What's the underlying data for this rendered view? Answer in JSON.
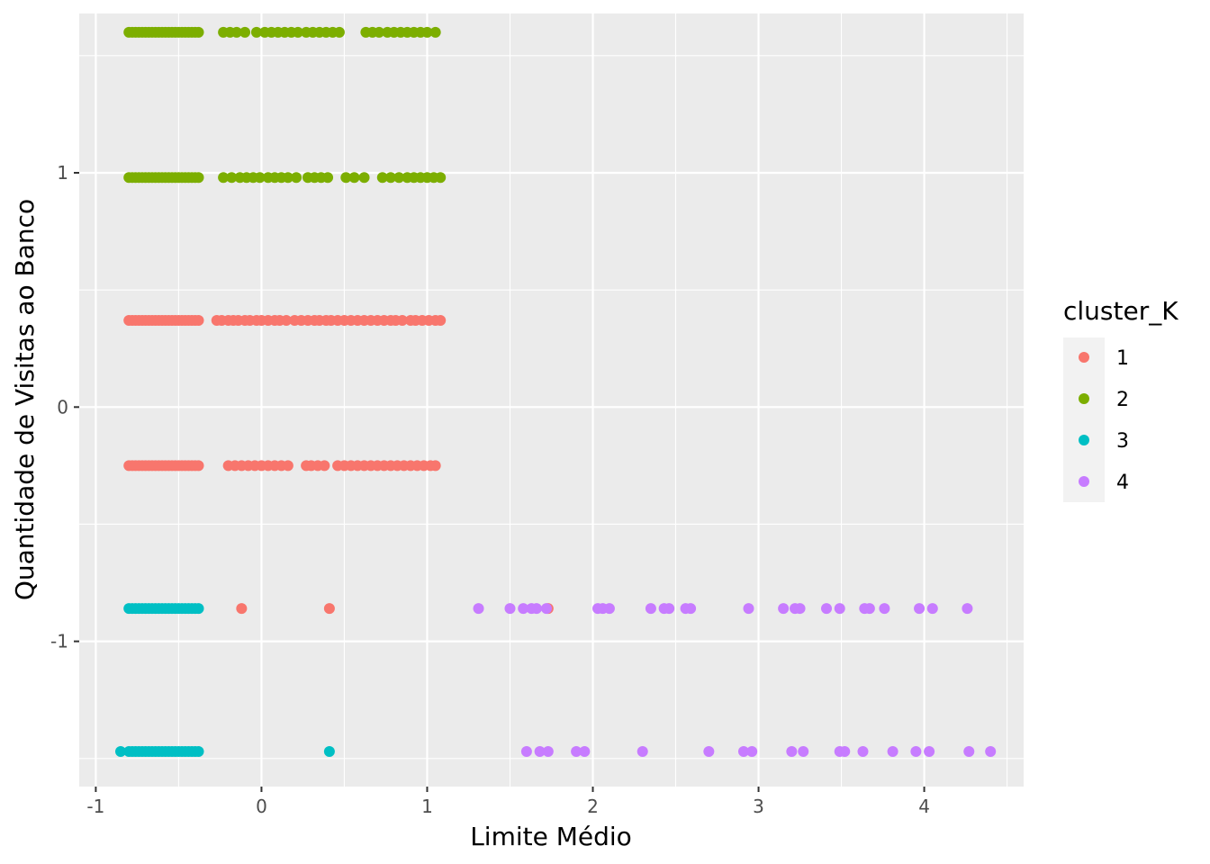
{
  "chart_data": {
    "type": "scatter",
    "xlabel": "Limite Médio",
    "ylabel": "Quantidade de Visitas ao Banco",
    "xlim": [
      -1.1,
      4.6
    ],
    "ylim": [
      -1.62,
      1.68
    ],
    "x_ticks": [
      -1,
      0,
      1,
      2,
      3,
      4
    ],
    "x_tick_labels": [
      "-1",
      "0",
      "1",
      "2",
      "3",
      "4"
    ],
    "y_ticks": [
      -1,
      0,
      1
    ],
    "y_tick_labels": [
      "-1",
      "0",
      "1"
    ],
    "grid": true,
    "legend": {
      "title": "cluster_K",
      "position": "right"
    },
    "series": [
      {
        "name": "1",
        "color": "#F8766D",
        "groups": [
          {
            "y": 0.37,
            "x": [
              -0.8,
              -0.78,
              -0.76,
              -0.74,
              -0.72,
              -0.7,
              -0.68,
              -0.66,
              -0.64,
              -0.62,
              -0.6,
              -0.58,
              -0.56,
              -0.54,
              -0.52,
              -0.5,
              -0.48,
              -0.46,
              -0.44,
              -0.42,
              -0.4,
              -0.38,
              -0.27,
              -0.24,
              -0.2,
              -0.17,
              -0.14,
              -0.1,
              -0.07,
              -0.03,
              0.0,
              0.04,
              0.08,
              0.11,
              0.15,
              0.2,
              0.24,
              0.28,
              0.32,
              0.35,
              0.39,
              0.42,
              0.46,
              0.5,
              0.54,
              0.58,
              0.62,
              0.66,
              0.7,
              0.74,
              0.78,
              0.81,
              0.85,
              0.9,
              0.93,
              0.97,
              1.01,
              1.05,
              1.08
            ]
          },
          {
            "y": -0.25,
            "x": [
              -0.8,
              -0.78,
              -0.76,
              -0.74,
              -0.72,
              -0.7,
              -0.68,
              -0.66,
              -0.64,
              -0.62,
              -0.6,
              -0.58,
              -0.56,
              -0.54,
              -0.52,
              -0.5,
              -0.48,
              -0.46,
              -0.44,
              -0.42,
              -0.4,
              -0.38,
              -0.2,
              -0.16,
              -0.12,
              -0.08,
              -0.04,
              0.0,
              0.04,
              0.08,
              0.12,
              0.16,
              0.27,
              0.3,
              0.34,
              0.38,
              0.46,
              0.5,
              0.54,
              0.58,
              0.62,
              0.66,
              0.7,
              0.74,
              0.78,
              0.82,
              0.86,
              0.9,
              0.94,
              0.98,
              1.02,
              1.05
            ]
          },
          {
            "y": -0.86,
            "x": [
              -0.12,
              0.41,
              1.73
            ]
          }
        ]
      },
      {
        "name": "2",
        "color": "#7CAE00",
        "groups": [
          {
            "y": 1.6,
            "x": [
              -0.8,
              -0.78,
              -0.76,
              -0.74,
              -0.72,
              -0.7,
              -0.68,
              -0.66,
              -0.64,
              -0.62,
              -0.6,
              -0.58,
              -0.56,
              -0.54,
              -0.52,
              -0.5,
              -0.48,
              -0.46,
              -0.44,
              -0.42,
              -0.4,
              -0.38,
              -0.23,
              -0.19,
              -0.15,
              -0.1,
              -0.03,
              0.02,
              0.06,
              0.1,
              0.14,
              0.18,
              0.22,
              0.27,
              0.31,
              0.35,
              0.39,
              0.43,
              0.47,
              0.63,
              0.67,
              0.71,
              0.76,
              0.8,
              0.84,
              0.88,
              0.92,
              0.96,
              1.0,
              1.05
            ]
          },
          {
            "y": 0.98,
            "x": [
              -0.8,
              -0.78,
              -0.76,
              -0.74,
              -0.72,
              -0.7,
              -0.68,
              -0.66,
              -0.64,
              -0.62,
              -0.6,
              -0.58,
              -0.56,
              -0.54,
              -0.52,
              -0.5,
              -0.48,
              -0.46,
              -0.44,
              -0.42,
              -0.4,
              -0.38,
              -0.23,
              -0.18,
              -0.13,
              -0.09,
              -0.05,
              -0.01,
              0.04,
              0.08,
              0.12,
              0.16,
              0.21,
              0.28,
              0.32,
              0.36,
              0.4,
              0.51,
              0.56,
              0.62,
              0.73,
              0.78,
              0.83,
              0.88,
              0.92,
              0.96,
              1.0,
              1.04,
              1.08
            ]
          }
        ]
      },
      {
        "name": "3",
        "color": "#00BFC4",
        "groups": [
          {
            "y": -0.86,
            "x": [
              -0.8,
              -0.78,
              -0.76,
              -0.74,
              -0.72,
              -0.7,
              -0.68,
              -0.66,
              -0.64,
              -0.62,
              -0.6,
              -0.58,
              -0.56,
              -0.54,
              -0.52,
              -0.5,
              -0.48,
              -0.46,
              -0.44,
              -0.42,
              -0.4,
              -0.38
            ]
          },
          {
            "y": -1.47,
            "x": [
              -0.85,
              -0.8,
              -0.78,
              -0.76,
              -0.74,
              -0.72,
              -0.7,
              -0.68,
              -0.66,
              -0.64,
              -0.62,
              -0.6,
              -0.58,
              -0.56,
              -0.54,
              -0.52,
              -0.5,
              -0.48,
              -0.46,
              -0.44,
              -0.42,
              -0.4,
              -0.38,
              0.41
            ]
          }
        ]
      },
      {
        "name": "4",
        "color": "#C77CFF",
        "groups": [
          {
            "y": -0.86,
            "x": [
              1.31,
              1.5,
              1.58,
              1.63,
              1.66,
              1.72,
              2.03,
              2.06,
              2.1,
              2.35,
              2.43,
              2.46,
              2.56,
              2.59,
              2.94,
              3.15,
              3.22,
              3.25,
              3.41,
              3.49,
              3.64,
              3.67,
              3.76,
              3.97,
              4.05,
              4.26
            ]
          },
          {
            "y": -1.47,
            "x": [
              1.6,
              1.68,
              1.73,
              1.9,
              1.95,
              2.3,
              2.7,
              2.91,
              2.96,
              3.2,
              3.27,
              3.49,
              3.52,
              3.63,
              3.81,
              3.95,
              4.03,
              4.27,
              4.4
            ]
          }
        ]
      }
    ]
  }
}
